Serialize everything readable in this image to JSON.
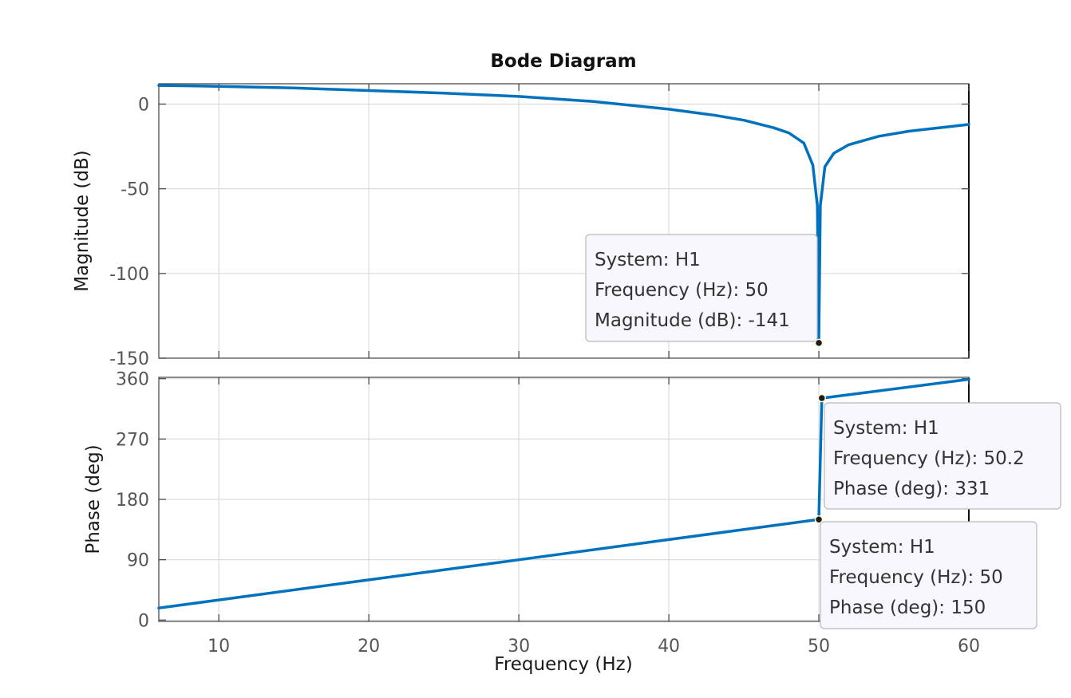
{
  "chart_data": {
    "type": "line",
    "title": "Bode Diagram",
    "xlabel": "Frequency  (Hz)",
    "xlim": [
      6,
      60
    ],
    "xticks": [
      10,
      20,
      30,
      40,
      50,
      60
    ],
    "line_color": "#0072BD",
    "grid": true,
    "panels": [
      {
        "name": "magnitude",
        "ylabel": "Magnitude (dB)",
        "ylim": [
          -150,
          12
        ],
        "yticks": [
          0,
          -50,
          -100,
          -150
        ],
        "series": [
          {
            "x": [
              6,
              10,
              15,
              20,
              25,
              30,
              35,
              40,
              43,
              45,
              47,
              48,
              49,
              49.6,
              49.9,
              50,
              50.1,
              50.4,
              51,
              52,
              54,
              56,
              58,
              60
            ],
            "y": [
              11,
              10.5,
              9.5,
              8,
              6.5,
              4.5,
              1.5,
              -3,
              -6.5,
              -9.5,
              -14,
              -17,
              -23,
              -36,
              -60,
              -141,
              -60,
              -37,
              -29,
              -24,
              -19,
              -16,
              -14,
              -12
            ]
          }
        ],
        "annotations": [
          {
            "x": 50,
            "y": -141,
            "lines": [
              "System: H1",
              "Frequency (Hz): 50",
              "Magnitude (dB): -141"
            ]
          }
        ]
      },
      {
        "name": "phase",
        "ylabel": "Phase (deg)",
        "ylim": [
          -2,
          362
        ],
        "yticks": [
          0,
          90,
          180,
          270,
          360
        ],
        "series": [
          {
            "x": [
              6,
              10,
              20,
              30,
              40,
              50,
              50.2,
              60
            ],
            "y": [
              18,
              30,
              60,
              90,
              120,
              150,
              331,
              359
            ]
          }
        ],
        "annotations": [
          {
            "x": 50.2,
            "y": 331,
            "lines": [
              "System: H1",
              "Frequency (Hz): 50.2",
              "Phase (deg): 331"
            ]
          },
          {
            "x": 50,
            "y": 150,
            "lines": [
              "System: H1",
              "Frequency (Hz): 50",
              "Phase (deg): 150"
            ]
          }
        ]
      }
    ]
  }
}
